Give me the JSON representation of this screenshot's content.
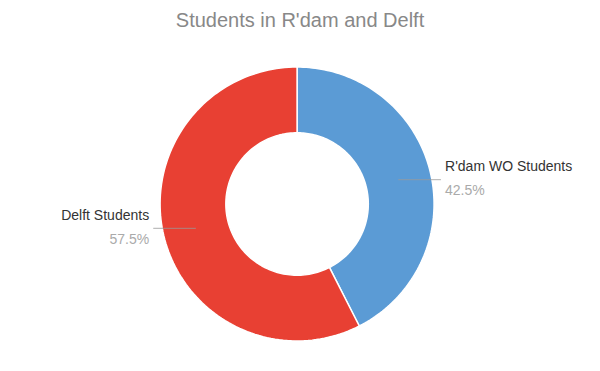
{
  "chart_data": {
    "type": "pie",
    "title": "Students in R'dam and Delft",
    "categories": [
      "R'dam WO Students",
      "Delft Students"
    ],
    "values": [
      42.5,
      57.5
    ],
    "value_labels": [
      "42.5%",
      "57.5%"
    ],
    "colors": [
      "#5B9BD5",
      "#E84033"
    ],
    "data_labels": true
  }
}
